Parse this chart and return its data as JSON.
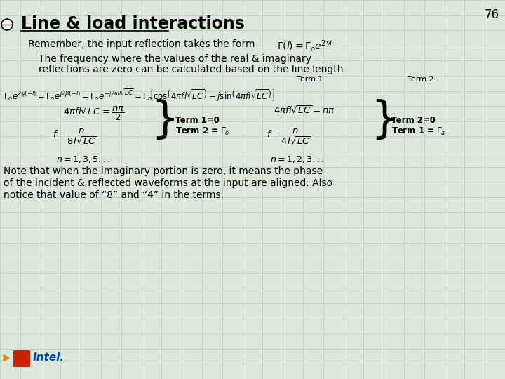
{
  "title": "Line & load interactions",
  "slide_number": "76",
  "bg_color": "#dce8dc",
  "title_color": "#000000",
  "title_fontsize": 17,
  "body_fontsize": 10,
  "grid_color": "#b8ccb8",
  "line1": "Remember, the input reflection takes the form",
  "line2": "The frequency where the values of the real & imaginary",
  "line3": "reflections are zero can be calculated based on the line length",
  "label_term1": "Term 1",
  "label_term2": "Term 2",
  "note_line1": "Note that when the imaginary portion is zero, it means the phase",
  "note_line2": "of the incident & reflected waveforms at the input are aligned. Also",
  "note_line3": "notice that value of “8” and “4” in the terms."
}
